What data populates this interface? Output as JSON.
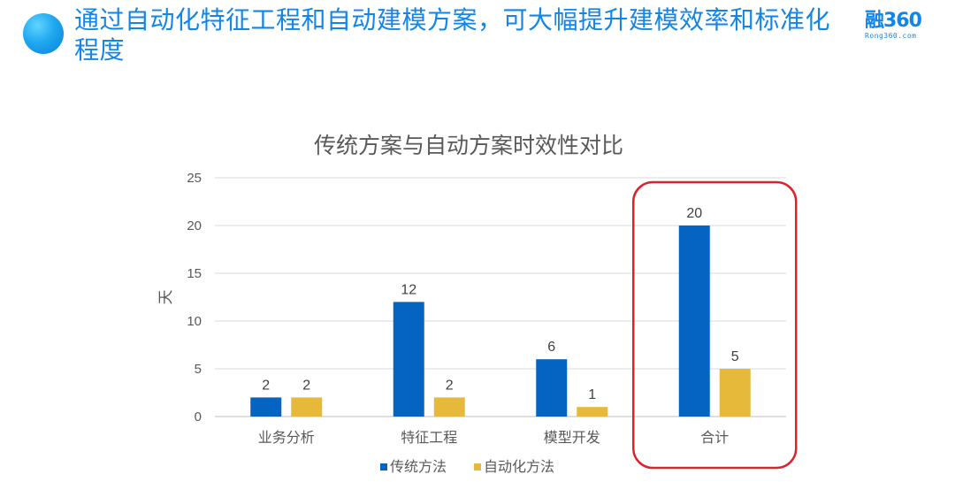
{
  "header": {
    "headline": "通过自动化特征工程和自动建模方案，可大幅提升建模效率和标准化程度",
    "logo_text": "融360",
    "logo_sub": "Rong360.com"
  },
  "colors": {
    "accent": "#1186e8",
    "series1": "#0563c1",
    "series2": "#e6b93a",
    "highlight": "#d9232d"
  },
  "chart_data": {
    "type": "bar",
    "title": "传统方案与自动方案时效性对比",
    "ylabel": "天",
    "xlabel": "",
    "ylim": [
      0,
      25
    ],
    "yticks": [
      0,
      5,
      10,
      15,
      20,
      25
    ],
    "grid": true,
    "legend_position": "bottom",
    "categories": [
      "业务分析",
      "特征工程",
      "模型开发",
      "合计"
    ],
    "series": [
      {
        "name": "传统方法",
        "values": [
          2,
          12,
          6,
          20
        ]
      },
      {
        "name": "自动化方法",
        "values": [
          2,
          2,
          1,
          5
        ]
      }
    ],
    "highlighted_category": "合计"
  }
}
